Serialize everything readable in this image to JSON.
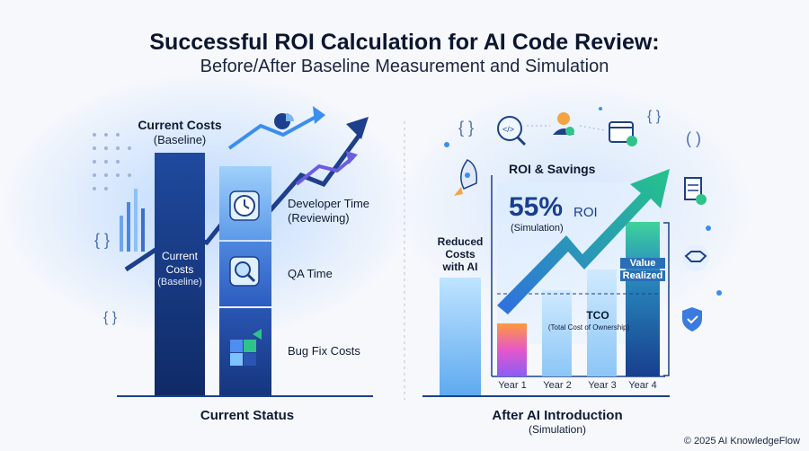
{
  "header": {
    "title": "Successful ROI Calculation for AI Code Review:",
    "subtitle": "Before/After Baseline Measurement and Simulation"
  },
  "left": {
    "top_label": "Current Costs",
    "top_sub": "(Baseline)",
    "bar_label_1": "Current",
    "bar_label_2": "Costs",
    "bar_label_3": "(Baseline)",
    "stack_items": [
      {
        "label_1": "Developer Time",
        "label_2": "(Reviewing)",
        "icon": "clock-icon"
      },
      {
        "label_1": "QA Time",
        "label_2": "",
        "icon": "magnifier-icon"
      },
      {
        "label_1": "Bug Fix Costs",
        "label_2": "",
        "icon": "puzzle-icon"
      }
    ],
    "footer": "Current Status"
  },
  "right": {
    "reduced_1": "Reduced",
    "reduced_2": "Costs",
    "reduced_3": "with AI",
    "savings_title": "ROI & Savings",
    "roi_value": "55%",
    "roi_unit": "ROI",
    "roi_note": "(Simulation)",
    "tco_1": "TCO",
    "tco_2": "(Total Cost of Ownership)",
    "value_1": "Value",
    "value_2": "Realized",
    "years": [
      "Year 1",
      "Year 2",
      "Year 3",
      "Year 4"
    ],
    "footer": "After AI Introduction",
    "footer_sub": "(Simulation)"
  },
  "copyright": "© 2025 AI KnowledgeFlow",
  "colors": {
    "navy": "#17367a",
    "blue": "#2f62c9",
    "light_blue": "#8fc4f5",
    "green": "#2fc38a"
  }
}
